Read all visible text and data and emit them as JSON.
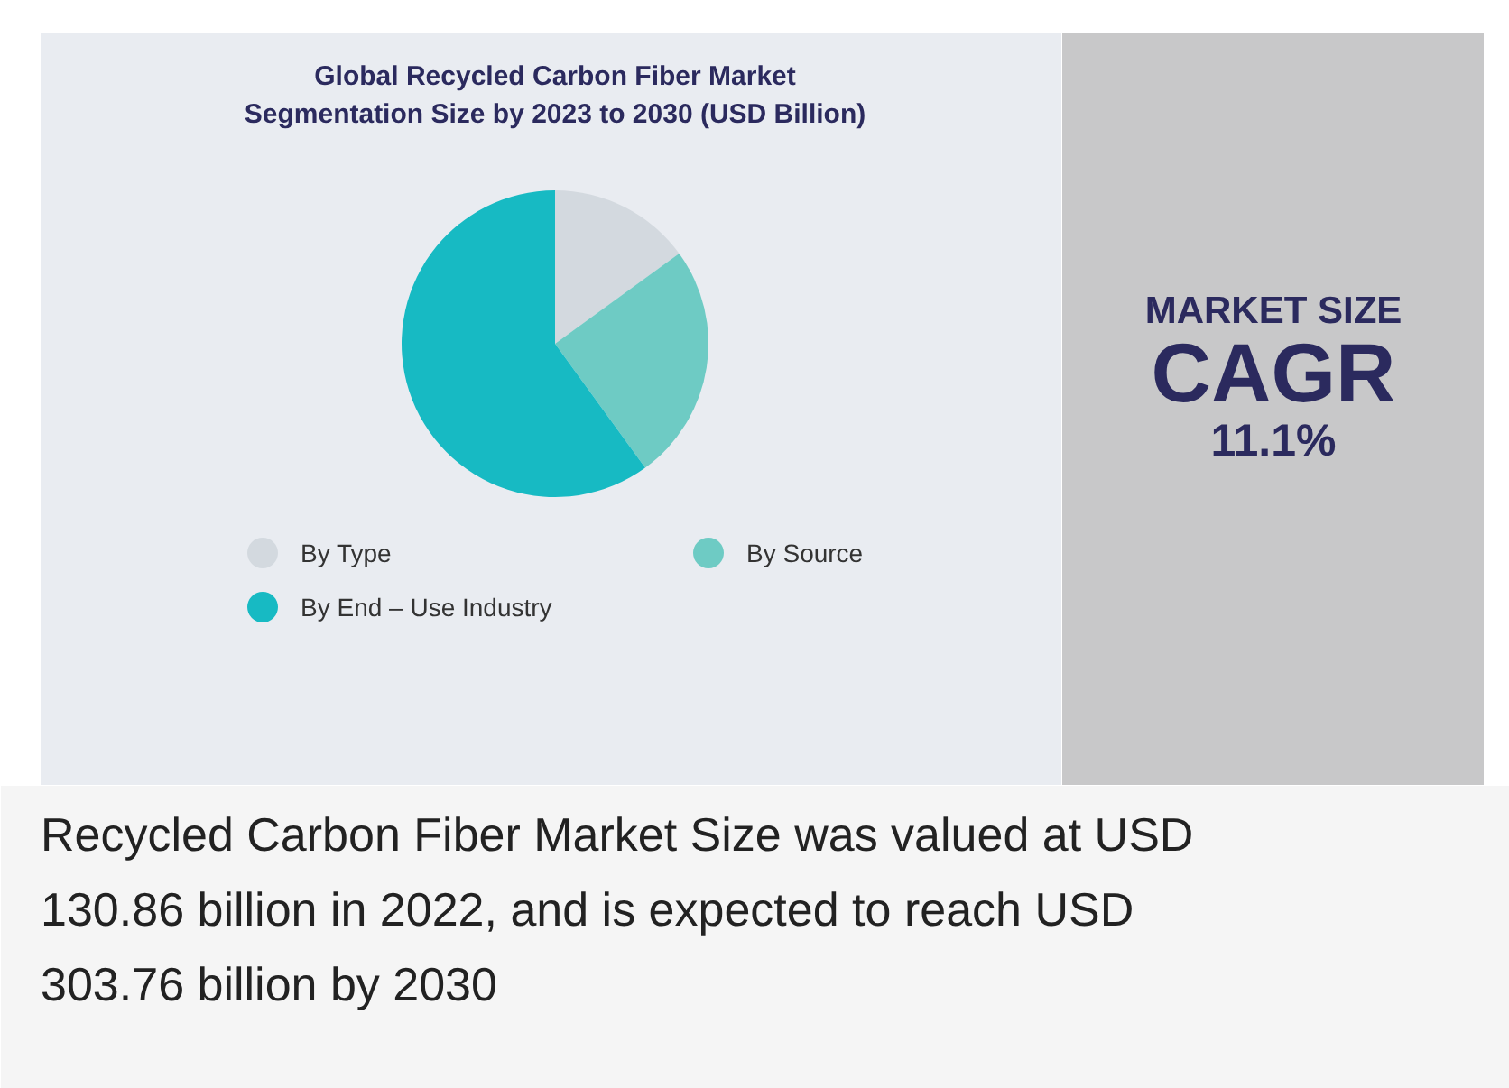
{
  "chart_data": {
    "type": "pie",
    "title": "Global Recycled Carbon Fiber Market\nSegmentation Size by 2023 to 2030 (USD Billion)",
    "categories": [
      "By Type",
      "By Source",
      "By End – Use Industry"
    ],
    "values": [
      15,
      25,
      60
    ],
    "colors": [
      "#d3d9df",
      "#6ecbc4",
      "#17bac3"
    ],
    "legend": "bottom",
    "annotations": [
      "MARKET SIZE",
      "CAGR",
      "11.1%",
      "Recycled Carbon Fiber Market Size was valued at USD 130.86 billion in 2022, and is expected to reach USD 303.76 billion by 2030"
    ]
  }
}
